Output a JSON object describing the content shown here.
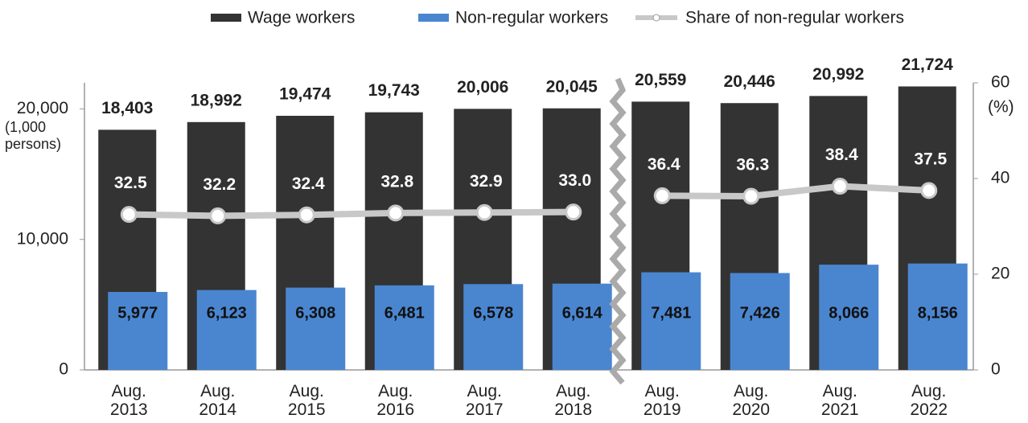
{
  "chart_data": {
    "type": "bar_line",
    "categories": [
      "Aug. 2013",
      "Aug. 2014",
      "Aug. 2015",
      "Aug. 2016",
      "Aug. 2017",
      "Aug. 2018",
      "Aug. 2019",
      "Aug. 2020",
      "Aug. 2021",
      "Aug. 2022"
    ],
    "series": [
      {
        "name": "Wage workers",
        "color": "#333333",
        "type": "bar",
        "values": [
          18403,
          18992,
          19474,
          19743,
          20006,
          20045,
          20559,
          20446,
          20992,
          21724
        ],
        "value_labels": [
          "18,403",
          "18,992",
          "19,474",
          "19,743",
          "20,006",
          "20,045",
          "20,559",
          "20,446",
          "20,992",
          "21,724"
        ]
      },
      {
        "name": "Non-regular workers",
        "color": "#4a86d0",
        "type": "bar",
        "values": [
          5977,
          6123,
          6308,
          6481,
          6578,
          6614,
          7481,
          7426,
          8066,
          8156
        ],
        "value_labels": [
          "5,977",
          "6,123",
          "6,308",
          "6,481",
          "6,578",
          "6,614",
          "7,481",
          "7,426",
          "8,066",
          "8,156"
        ]
      },
      {
        "name": "Share of non-regular workers",
        "color": "#c8c8c8",
        "type": "line",
        "axis": "y2",
        "values": [
          32.5,
          32.2,
          32.4,
          32.8,
          32.9,
          33.0,
          36.4,
          36.3,
          38.4,
          37.5
        ],
        "value_labels": [
          "32.5",
          "32.2",
          "32.4",
          "32.8",
          "32.9",
          "33.0",
          "36.4",
          "36.3",
          "38.4",
          "37.5"
        ]
      }
    ],
    "y_label": "(1,000 persons)",
    "y2_label": "(%)",
    "ylim": [
      0,
      22000
    ],
    "yticks": [
      0,
      {
        "value": 10000,
        "label": "10,000"
      },
      {
        "value": 20000,
        "label": "20,000"
      }
    ],
    "y2lim": [
      0,
      60
    ],
    "y2ticks": [
      0,
      20,
      40,
      60
    ],
    "axis_break_after": "Aug. 2018",
    "legend": "top"
  }
}
